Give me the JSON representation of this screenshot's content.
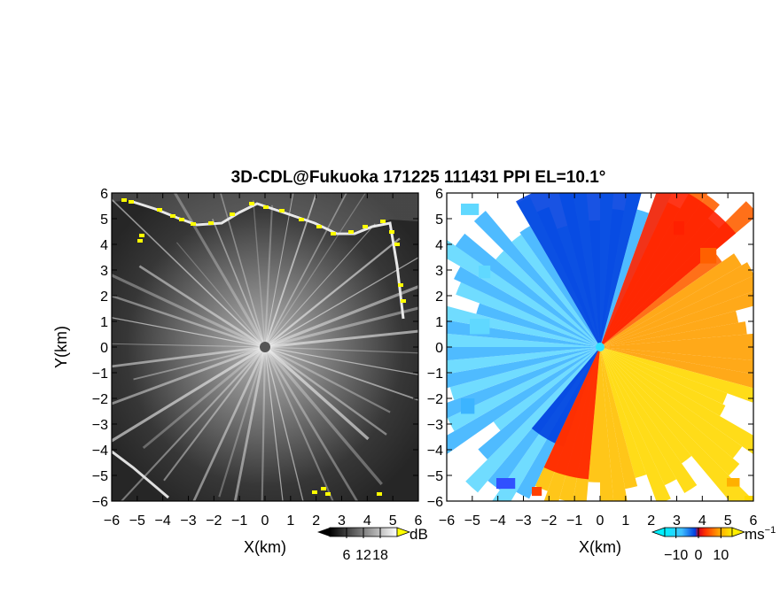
{
  "title": "3D-CDL@Fukuoka 171225 111431 PPI EL=10.1°",
  "chart_data": [
    {
      "type": "heatmap",
      "field": "reflectivity",
      "xlabel": "X(km)",
      "ylabel": "Y(km)",
      "xlim": [
        -6,
        6
      ],
      "ylim": [
        -6,
        6
      ],
      "xticks": [
        "−6",
        "−5",
        "−4",
        "−3",
        "−2",
        "−1",
        "0",
        "1",
        "2",
        "3",
        "4",
        "5",
        "6"
      ],
      "yticks": [
        "6",
        "5",
        "4",
        "3",
        "2",
        "1",
        "0",
        "−1",
        "−2",
        "−3",
        "−4",
        "−5",
        "−6"
      ],
      "colorbar": {
        "unit": "dB",
        "ticks": [
          "6",
          "12",
          "18"
        ],
        "range": [
          0,
          24
        ]
      },
      "colors": {
        "low": "#1a1a1a",
        "high": "#f2f2f2",
        "saturated": "#ffff00"
      },
      "features": {
        "radar_center": [
          0,
          0
        ],
        "echo_boundary_top_y_km": [
          5.1,
          5.6
        ],
        "right_boundary_x_km": 5.3,
        "bottom_left_edge": "from (-6,-4.1) to (-4.2,-6)"
      }
    },
    {
      "type": "heatmap",
      "field": "doppler velocity",
      "xlabel": "X(km)",
      "xlim": [
        -6,
        6
      ],
      "ylim": [
        -6,
        6
      ],
      "xticks": [
        "−6",
        "−5",
        "−4",
        "−3",
        "−2",
        "−1",
        "0",
        "1",
        "2",
        "3",
        "4",
        "5",
        "6"
      ],
      "yticks": [
        "6",
        "5",
        "4",
        "3",
        "2",
        "1",
        "0",
        "−1",
        "−2",
        "−3",
        "−4",
        "−5",
        "−6"
      ],
      "colorbar": {
        "unit": "ms",
        "unit_exponent": "−1",
        "ticks": [
          "−10",
          "0",
          "10"
        ],
        "range": [
          -15,
          15
        ]
      },
      "colors": {
        "negative_strong": "#0040e0",
        "negative_weak": "#40d0ff",
        "positive_weak": "#ffd800",
        "positive_strong": "#ff2000"
      },
      "features": {
        "radar_center": [
          0,
          0
        ],
        "zero_velocity_line": "from (-1.5,-2) to (1,2)",
        "approaching_side": "west",
        "receding_side": "east"
      }
    }
  ],
  "labels": {
    "xlabel_left": "X(km)",
    "xlabel_right": "X(km)",
    "ylabel": "Y(km)",
    "cb1_unit": "dB",
    "cb2_unit": "ms",
    "cb2_unit_exp": "−1"
  }
}
